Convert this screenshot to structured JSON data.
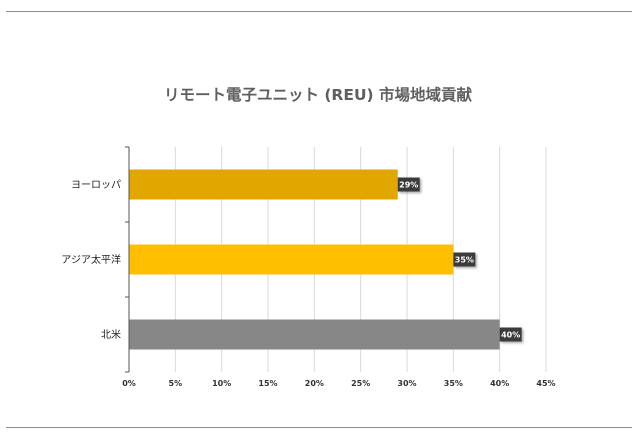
{
  "chart_data": {
    "type": "bar",
    "orientation": "horizontal",
    "title": "リモート電子ユニット (REU) 市場地域貢献",
    "categories": [
      "ヨーロッパ",
      "アジア太平洋",
      "北米"
    ],
    "values": [
      29,
      35,
      40
    ],
    "data_labels": [
      "29%",
      "35%",
      "40%"
    ],
    "colors": [
      "#e2a600",
      "#ffbf00",
      "#878787"
    ],
    "xlim": [
      0,
      45
    ],
    "x_ticks": [
      0,
      5,
      10,
      15,
      20,
      25,
      30,
      35,
      40,
      45
    ],
    "x_tick_labels": [
      "0%",
      "5%",
      "10%",
      "15%",
      "20%",
      "25%",
      "30%",
      "35%",
      "40%",
      "45%"
    ],
    "xlabel": "",
    "ylabel": "",
    "grid": true,
    "legend": "none"
  }
}
